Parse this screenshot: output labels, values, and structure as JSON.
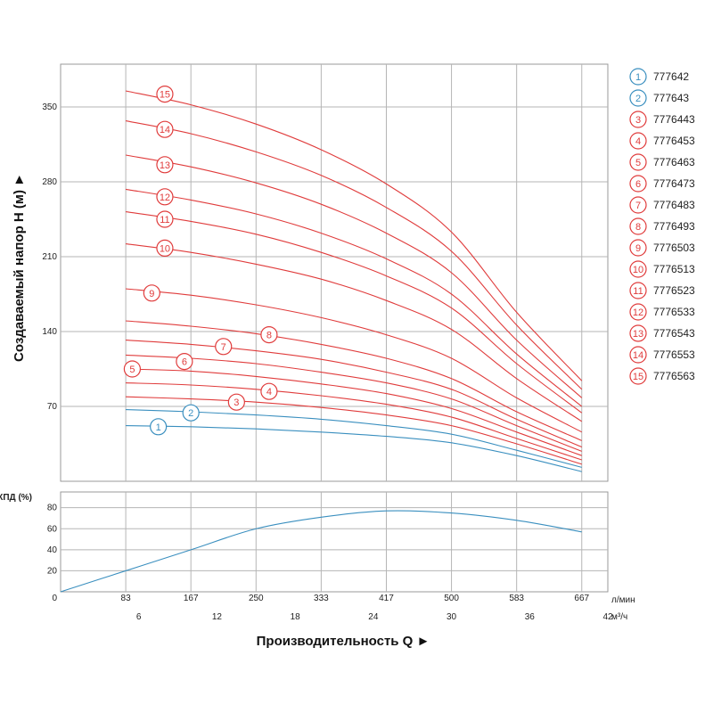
{
  "chart_data": [
    {
      "type": "line",
      "name": "head-chart",
      "ylabel": "Создаваемый напор Н (м) ►",
      "y_ticks": [
        70,
        140,
        210,
        280,
        350
      ],
      "ylim": [
        0,
        390
      ],
      "xlim_m3h": [
        0,
        42
      ],
      "x": [
        5,
        10,
        15,
        20,
        25,
        30,
        35,
        40
      ],
      "red_color": "#e03c3c",
      "blue_color": "#3a8fbf",
      "series": [
        {
          "id": "1",
          "name": "777642",
          "color": "blue",
          "values": [
            52,
            51,
            49,
            46,
            42,
            36,
            24,
            9
          ]
        },
        {
          "id": "2",
          "name": "777643",
          "color": "blue",
          "values": [
            67,
            65,
            62,
            58,
            52,
            44,
            29,
            13
          ]
        },
        {
          "id": "3",
          "name": "7776443",
          "color": "red",
          "values": [
            79,
            77,
            74,
            69,
            62,
            52,
            35,
            16
          ]
        },
        {
          "id": "4",
          "name": "7776453",
          "color": "red",
          "values": [
            92,
            90,
            86,
            80,
            72,
            60,
            40,
            20
          ]
        },
        {
          "id": "5",
          "name": "7776463",
          "color": "red",
          "values": [
            105,
            103,
            98,
            91,
            82,
            68,
            46,
            24
          ]
        },
        {
          "id": "6",
          "name": "7776473",
          "color": "red",
          "values": [
            118,
            115,
            110,
            102,
            92,
            77,
            52,
            28
          ]
        },
        {
          "id": "7",
          "name": "7776483",
          "color": "red",
          "values": [
            132,
            128,
            122,
            114,
            102,
            86,
            58,
            32
          ]
        },
        {
          "id": "8",
          "name": "7776493",
          "color": "red",
          "values": [
            150,
            145,
            138,
            128,
            115,
            96,
            65,
            38
          ]
        },
        {
          "id": "9",
          "name": "7776503",
          "color": "red",
          "values": [
            180,
            174,
            165,
            153,
            137,
            115,
            78,
            46
          ]
        },
        {
          "id": "10",
          "name": "7776513",
          "color": "red",
          "values": [
            222,
            214,
            203,
            189,
            169,
            142,
            96,
            56
          ]
        },
        {
          "id": "11",
          "name": "7776523",
          "color": "red",
          "values": [
            252,
            243,
            231,
            214,
            192,
            162,
            110,
            64
          ]
        },
        {
          "id": "12",
          "name": "7776533",
          "color": "red",
          "values": [
            273,
            263,
            250,
            232,
            208,
            175,
            119,
            70
          ]
        },
        {
          "id": "13",
          "name": "7776543",
          "color": "red",
          "values": [
            305,
            294,
            279,
            259,
            232,
            195,
            132,
            78
          ]
        },
        {
          "id": "14",
          "name": "7776553",
          "color": "red",
          "values": [
            337,
            325,
            308,
            286,
            256,
            215,
            146,
            86
          ]
        },
        {
          "id": "15",
          "name": "7776563",
          "color": "red",
          "values": [
            365,
            352,
            334,
            310,
            278,
            233,
            158,
            94
          ]
        }
      ],
      "curve_labels": [
        {
          "id": "1",
          "x": 7.5,
          "y": 51
        },
        {
          "id": "2",
          "x": 10,
          "y": 64
        },
        {
          "id": "3",
          "x": 13.5,
          "y": 74
        },
        {
          "id": "4",
          "x": 16,
          "y": 84
        },
        {
          "id": "5",
          "x": 5.5,
          "y": 105
        },
        {
          "id": "6",
          "x": 9.5,
          "y": 112
        },
        {
          "id": "7",
          "x": 12.5,
          "y": 126
        },
        {
          "id": "8",
          "x": 16,
          "y": 137
        },
        {
          "id": "9",
          "x": 7,
          "y": 176
        },
        {
          "id": "10",
          "x": 8,
          "y": 218
        },
        {
          "id": "11",
          "x": 8,
          "y": 245
        },
        {
          "id": "12",
          "x": 8,
          "y": 266
        },
        {
          "id": "13",
          "x": 8,
          "y": 296
        },
        {
          "id": "14",
          "x": 8,
          "y": 329
        },
        {
          "id": "15",
          "x": 8,
          "y": 362
        }
      ]
    },
    {
      "type": "line",
      "name": "efficiency-chart",
      "ylabel": "КПД (%)",
      "y_ticks": [
        20,
        40,
        60,
        80
      ],
      "ylim": [
        0,
        95
      ],
      "x": [
        0,
        5,
        10,
        15,
        20,
        25,
        30,
        35,
        40
      ],
      "values": [
        0,
        20,
        40,
        60,
        71,
        77,
        75,
        68,
        57
      ],
      "color": "#3a8fbf"
    }
  ],
  "x_axis": {
    "zero_label": "0",
    "lmin_ticks": [
      "83",
      "167",
      "250",
      "333",
      "417",
      "500",
      "583",
      "667"
    ],
    "lmin_unit": "л/мин",
    "m3h_ticks": [
      "6",
      "12",
      "18",
      "24",
      "30",
      "36",
      "42"
    ],
    "m3h_unit": "м³/ч",
    "title": "Производительность Q ►"
  },
  "legend": [
    {
      "id": "1",
      "label": "777642",
      "color": "blue"
    },
    {
      "id": "2",
      "label": "777643",
      "color": "blue"
    },
    {
      "id": "3",
      "label": "7776443",
      "color": "red"
    },
    {
      "id": "4",
      "label": "7776453",
      "color": "red"
    },
    {
      "id": "5",
      "label": "7776463",
      "color": "red"
    },
    {
      "id": "6",
      "label": "7776473",
      "color": "red"
    },
    {
      "id": "7",
      "label": "7776483",
      "color": "red"
    },
    {
      "id": "8",
      "label": "7776493",
      "color": "red"
    },
    {
      "id": "9",
      "label": "7776503",
      "color": "red"
    },
    {
      "id": "10",
      "label": "7776513",
      "color": "red"
    },
    {
      "id": "11",
      "label": "7776523",
      "color": "red"
    },
    {
      "id": "12",
      "label": "7776533",
      "color": "red"
    },
    {
      "id": "13",
      "label": "7776543",
      "color": "red"
    },
    {
      "id": "14",
      "label": "7776553",
      "color": "red"
    },
    {
      "id": "15",
      "label": "7776563",
      "color": "red"
    }
  ]
}
